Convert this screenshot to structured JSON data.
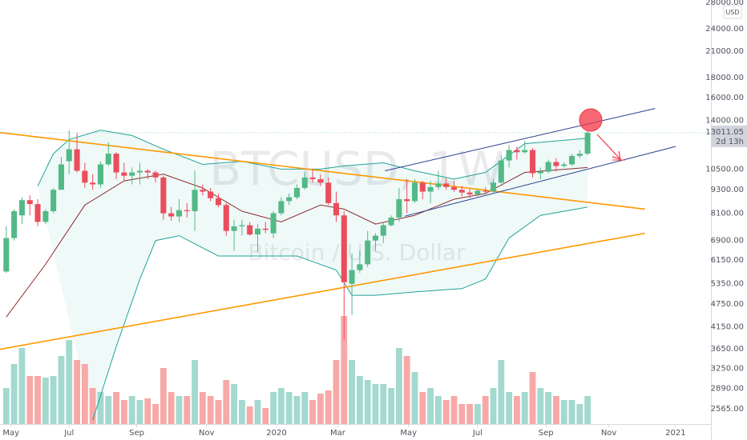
{
  "chart_data": {
    "type": "candlestick",
    "watermark": {
      "symbol": "BTCUSD, 1W",
      "description": "Bitcoin / U.S. Dollar"
    },
    "currency": "USD",
    "last_price_timer": "2d 13h",
    "log": true,
    "grid": false,
    "xlim": [
      -0.8,
      89.7
    ],
    "xticks": [
      {
        "value": 0.6,
        "label": "May"
      },
      {
        "value": 8.0,
        "label": "Jul"
      },
      {
        "value": 16.6,
        "label": "Sep"
      },
      {
        "value": 25.5,
        "label": "Nov"
      },
      {
        "value": 34.4,
        "label": "2020"
      },
      {
        "value": 42.2,
        "label": "Mar"
      },
      {
        "value": 51.2,
        "label": "May"
      },
      {
        "value": 60.0,
        "label": "Jul"
      },
      {
        "value": 68.7,
        "label": "Sep"
      },
      {
        "value": 76.7,
        "label": "Nov"
      },
      {
        "value": 85.2,
        "label": "2021"
      }
    ],
    "ylim": [
      2345,
      28400
    ],
    "yticks": [
      {
        "value": 28000,
        "label": "28000.00"
      },
      {
        "value": 24000,
        "label": "24000.00"
      },
      {
        "value": 21000,
        "label": "21000.00"
      },
      {
        "value": 18000,
        "label": "18000.00"
      },
      {
        "value": 16000,
        "label": "16000.00"
      },
      {
        "value": 14000,
        "label": "14000.00"
      },
      {
        "value": 10500,
        "label": "10500.00"
      },
      {
        "value": 9300,
        "label": "9300.00"
      },
      {
        "value": 8100,
        "label": "8100.00"
      },
      {
        "value": 6900,
        "label": "6900.00"
      },
      {
        "value": 6150,
        "label": "6150.00"
      },
      {
        "value": 5350,
        "label": "5350.00"
      },
      {
        "value": 4750,
        "label": "4750.00"
      },
      {
        "value": 4150,
        "label": "4150.00"
      },
      {
        "value": 3650,
        "label": "3650.00"
      },
      {
        "value": 3250,
        "label": "3250.00"
      },
      {
        "value": 2890,
        "label": "2890.00"
      },
      {
        "value": 2565,
        "label": "2565.00"
      }
    ],
    "up_color": "#53b987",
    "down_color": "#eb4d5c",
    "volume_up_color": "#a3d9cf",
    "volume_down_color": "#f7a9a7",
    "candles": {
      "open": [
        5750,
        7000,
        8000,
        8750,
        8550,
        7700,
        8200,
        9300,
        11000,
        11800,
        10400,
        9700,
        9600,
        10800,
        11500,
        10300,
        10100,
        10300,
        10400,
        10300,
        10000,
        8100,
        7950,
        8250,
        8200,
        9300,
        9200,
        8850,
        8500,
        7300,
        7500,
        7550,
        7150,
        7400,
        7200,
        8100,
        8700,
        8900,
        9400,
        10000,
        9900,
        9700,
        8600,
        8000,
        5350,
        5800,
        6000,
        6900,
        7100,
        7550,
        7900,
        8800,
        8700,
        9700,
        9200,
        9450,
        9650,
        9450,
        9300,
        9150,
        9050,
        9250,
        9200,
        9700,
        11050,
        11750,
        11600,
        11750,
        10250,
        10350,
        10950,
        10700,
        10800,
        11350,
        11500
      ],
      "high": [
        7500,
        8300,
        8900,
        9000,
        8800,
        8300,
        9400,
        11300,
        13200,
        13000,
        10900,
        10200,
        11000,
        12300,
        11600,
        10900,
        10600,
        10900,
        10500,
        10400,
        10100,
        8400,
        8800,
        8600,
        10400,
        9600,
        9400,
        9100,
        8600,
        7800,
        7800,
        7700,
        7600,
        7700,
        8200,
        8900,
        9100,
        9600,
        10300,
        10500,
        10200,
        10000,
        9200,
        8200,
        6400,
        6500,
        7300,
        7200,
        7700,
        8000,
        9400,
        9900,
        9900,
        9800,
        9800,
        10400,
        9950,
        9800,
        9500,
        9350,
        9350,
        9450,
        9900,
        11400,
        12100,
        12000,
        12400,
        11900,
        10600,
        11100,
        11200,
        10950,
        11500,
        11750,
        13200
      ],
      "low": [
        5700,
        6900,
        7600,
        8000,
        7500,
        7600,
        8100,
        9300,
        10200,
        10300,
        9400,
        9300,
        9400,
        10700,
        9900,
        9800,
        9600,
        9600,
        9900,
        9700,
        7800,
        7750,
        7700,
        7900,
        7300,
        9000,
        8700,
        8400,
        7100,
        6500,
        7100,
        7100,
        6450,
        7200,
        7000,
        8000,
        8500,
        8800,
        9300,
        9700,
        9500,
        8500,
        7700,
        3850,
        4450,
        5700,
        5900,
        6500,
        6800,
        7500,
        7700,
        8100,
        8600,
        8800,
        8600,
        9300,
        9300,
        9200,
        8950,
        8850,
        8950,
        9050,
        9150,
        9650,
        10600,
        11100,
        11500,
        10000,
        9900,
        10250,
        10350,
        10600,
        10700,
        11200,
        11400
      ],
      "close": [
        7000,
        8200,
        8750,
        8550,
        7700,
        8200,
        9300,
        10800,
        11800,
        10400,
        9700,
        9600,
        10800,
        11500,
        10300,
        10100,
        10300,
        10400,
        10300,
        10000,
        8100,
        7950,
        8250,
        8200,
        9300,
        9200,
        8850,
        8500,
        7300,
        7500,
        7550,
        7150,
        7400,
        7350,
        8100,
        8700,
        8900,
        9400,
        10000,
        9900,
        9700,
        8600,
        8000,
        5400,
        5800,
        6000,
        6900,
        7100,
        7550,
        7900,
        8800,
        8700,
        9700,
        9200,
        9450,
        9650,
        9450,
        9300,
        9150,
        9050,
        9250,
        9200,
        9700,
        11050,
        11750,
        11600,
        11750,
        10250,
        10350,
        10950,
        10700,
        10800,
        11350,
        11500,
        13011.05
      ],
      "volume": [
        45,
        75,
        95,
        60,
        60,
        58,
        60,
        85,
        105,
        80,
        75,
        45,
        40,
        35,
        40,
        30,
        35,
        30,
        32,
        25,
        70,
        40,
        35,
        35,
        80,
        40,
        35,
        30,
        55,
        50,
        30,
        22,
        30,
        20,
        40,
        45,
        40,
        35,
        40,
        30,
        38,
        42,
        80,
        135,
        80,
        60,
        55,
        50,
        50,
        45,
        95,
        85,
        65,
        40,
        45,
        35,
        30,
        35,
        25,
        25,
        25,
        35,
        45,
        80,
        40,
        35,
        40,
        65,
        45,
        40,
        35,
        30,
        30,
        25,
        35
      ]
    },
    "bands": {
      "upper": {
        "color": "#22a39a",
        "x": [
          4,
          6,
          8,
          12,
          16,
          20,
          25,
          30,
          35,
          40,
          43,
          48,
          52,
          57,
          61,
          66,
          74
        ],
        "y": [
          9500,
          11500,
          12500,
          13200,
          12800,
          11800,
          10800,
          11000,
          10500,
          10500,
          10700,
          10900,
          10400,
          9900,
          10300,
          12200,
          12600
        ]
      },
      "basis": {
        "color": "#8b2d2d",
        "x": [
          0,
          5,
          10,
          15,
          20,
          25,
          30,
          35,
          40,
          43,
          47,
          52,
          57,
          61,
          66,
          74
        ],
        "y": [
          4400,
          6000,
          8500,
          9800,
          10200,
          9400,
          8200,
          7700,
          8500,
          8300,
          7600,
          8000,
          8800,
          9100,
          10300,
          10600
        ]
      },
      "lower": {
        "color": "#22a39a",
        "x": [
          11,
          14,
          17,
          19,
          22,
          27,
          32,
          37,
          42,
          44,
          47,
          52,
          58,
          61,
          64,
          68,
          74
        ],
        "y": [
          2400,
          3700,
          5500,
          6900,
          7100,
          6300,
          6300,
          6300,
          5800,
          5000,
          5000,
          5100,
          5200,
          5500,
          7000,
          8000,
          8400
        ]
      }
    },
    "trend_lines": [
      {
        "color": "#ff9800",
        "x": [
          -0.8,
          81.3
        ],
        "y": [
          13020,
          8300
        ]
      },
      {
        "color": "#ff9800",
        "x": [
          -0.8,
          81.3
        ],
        "y": [
          3640,
          7200
        ]
      },
      {
        "color": "#2a3e8f",
        "x": [
          48.2,
          82.6
        ],
        "y": [
          10400,
          15000
        ]
      },
      {
        "color": "#2a3e8f",
        "x": [
          50.7,
          85.2
        ],
        "y": [
          7960,
          12000
        ]
      }
    ]
  }
}
